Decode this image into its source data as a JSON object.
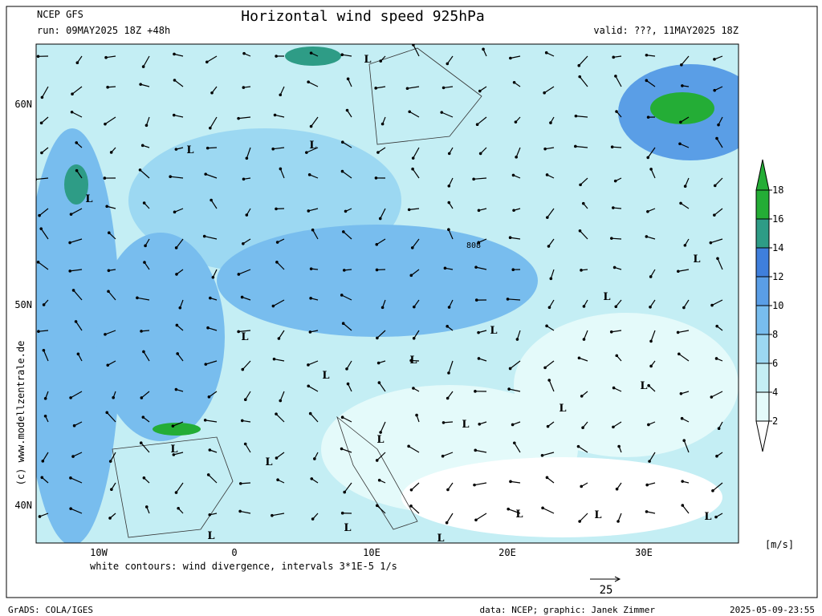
{
  "header": {
    "model": "NCEP GFS",
    "run": "run: 09MAY2025 18Z +48h",
    "title": "Horizontal wind speed 925hPa",
    "valid": "valid: ???, 11MAY2025 18Z"
  },
  "map": {
    "lat_labels": [
      "60N",
      "50N",
      "40N"
    ],
    "lon_labels": [
      "10W",
      "0",
      "10E",
      "20E",
      "30E"
    ],
    "low_labels": [
      "L",
      "L",
      "L",
      "L",
      "L",
      "L",
      "L",
      "L",
      "L",
      "L",
      "L",
      "L",
      "L",
      "L",
      "L",
      "L",
      "L",
      "L",
      "L",
      "L",
      "L",
      "L"
    ],
    "pressure_label": "808",
    "side_credit": "(c) www.modellzentrale.de",
    "note": "white contours: wind divergence, intervals 3*1E-5 1/s",
    "reference_arrow": "25"
  },
  "colorbar": {
    "unit": "[m/s]",
    "ticks": [
      2,
      4,
      6,
      8,
      10,
      12,
      14,
      16,
      18
    ],
    "colors": [
      "#ffffff",
      "#e4fafa",
      "#c4eef4",
      "#9cd8f2",
      "#78bdee",
      "#5a9ee6",
      "#3f7fdc",
      "#2e9c86",
      "#24ad36",
      "#24ad36"
    ]
  },
  "footer": {
    "software": "GrADS: COLA/IGES",
    "credit": "data: NCEP; graphic: Janek Zimmer",
    "timestamp": "2025-05-09-23:55"
  }
}
